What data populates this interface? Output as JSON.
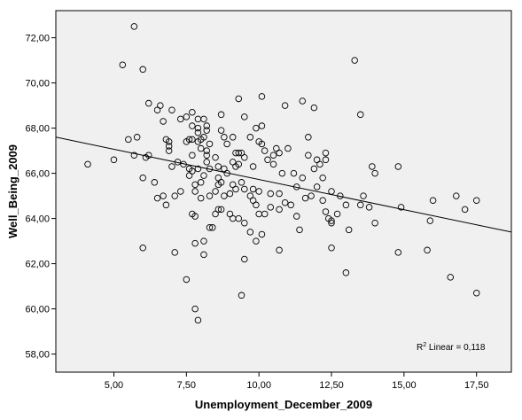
{
  "chart_data": {
    "type": "scatter",
    "xlabel": "Unemployment_December_2009",
    "ylabel": "Well_Being_2009",
    "xlim": [
      3.0,
      18.7
    ],
    "ylim": [
      57.2,
      73.2
    ],
    "x_ticks": [
      5,
      7.5,
      10,
      12.5,
      15,
      17.5
    ],
    "x_tick_labels": [
      "5,00",
      "7,50",
      "10,00",
      "12,50",
      "15,00",
      "17,50"
    ],
    "y_ticks": [
      58,
      60,
      62,
      64,
      66,
      68,
      70,
      72
    ],
    "y_tick_labels": [
      "58,00",
      "60,00",
      "62,00",
      "64,00",
      "66,00",
      "68,00",
      "70,00",
      "72,00"
    ],
    "grid": false,
    "background_color": "#f0f0f0",
    "marker_color": "#000000",
    "fit_line": {
      "x": [
        3.0,
        18.7
      ],
      "y": [
        67.6,
        63.4
      ]
    },
    "annotation": {
      "prefix": "R",
      "sup": "2",
      "text": " Linear = 0,118"
    },
    "points": [
      [
        4.1,
        66.4
      ],
      [
        5.0,
        66.6
      ],
      [
        5.3,
        70.8
      ],
      [
        5.5,
        67.5
      ],
      [
        5.7,
        72.5
      ],
      [
        5.7,
        66.8
      ],
      [
        5.8,
        67.6
      ],
      [
        6.0,
        70.6
      ],
      [
        6.0,
        62.7
      ],
      [
        6.0,
        65.8
      ],
      [
        6.1,
        66.7
      ],
      [
        6.2,
        66.8
      ],
      [
        6.2,
        69.1
      ],
      [
        6.4,
        65.6
      ],
      [
        6.5,
        68.8
      ],
      [
        6.5,
        64.9
      ],
      [
        6.6,
        69.0
      ],
      [
        6.7,
        68.3
      ],
      [
        6.7,
        65.0
      ],
      [
        6.8,
        64.6
      ],
      [
        6.8,
        67.5
      ],
      [
        6.9,
        67.4
      ],
      [
        6.9,
        67.2
      ],
      [
        6.9,
        67.0
      ],
      [
        7.0,
        68.8
      ],
      [
        7.0,
        66.3
      ],
      [
        7.1,
        62.5
      ],
      [
        7.1,
        65.0
      ],
      [
        7.2,
        66.5
      ],
      [
        7.3,
        68.4
      ],
      [
        7.3,
        65.2
      ],
      [
        7.4,
        66.4
      ],
      [
        7.5,
        68.5
      ],
      [
        7.5,
        67.4
      ],
      [
        7.5,
        61.3
      ],
      [
        7.6,
        67.5
      ],
      [
        7.6,
        66.2
      ],
      [
        7.6,
        65.9
      ],
      [
        7.7,
        68.7
      ],
      [
        7.7,
        68.1
      ],
      [
        7.7,
        67.5
      ],
      [
        7.7,
        66.8
      ],
      [
        7.7,
        66.1
      ],
      [
        7.7,
        64.2
      ],
      [
        7.8,
        65.5
      ],
      [
        7.8,
        64.1
      ],
      [
        7.8,
        65.2
      ],
      [
        7.8,
        60.0
      ],
      [
        7.8,
        62.9
      ],
      [
        7.9,
        68.4
      ],
      [
        7.9,
        68.0
      ],
      [
        7.9,
        67.8
      ],
      [
        7.9,
        67.4
      ],
      [
        7.9,
        66.2
      ],
      [
        7.9,
        59.5
      ],
      [
        8.0,
        67.5
      ],
      [
        8.0,
        67.1
      ],
      [
        8.0,
        65.6
      ],
      [
        8.0,
        64.9
      ],
      [
        8.1,
        68.4
      ],
      [
        8.1,
        67.6
      ],
      [
        8.1,
        65.9
      ],
      [
        8.1,
        63.0
      ],
      [
        8.1,
        62.4
      ],
      [
        8.2,
        68.1
      ],
      [
        8.2,
        67.9
      ],
      [
        8.2,
        67.0
      ],
      [
        8.2,
        66.8
      ],
      [
        8.2,
        66.5
      ],
      [
        8.3,
        67.3
      ],
      [
        8.3,
        66.2
      ],
      [
        8.3,
        65.0
      ],
      [
        8.3,
        63.6
      ],
      [
        8.4,
        63.6
      ],
      [
        8.5,
        66.7
      ],
      [
        8.5,
        65.2
      ],
      [
        8.5,
        64.2
      ],
      [
        8.6,
        66.3
      ],
      [
        8.6,
        65.8
      ],
      [
        8.6,
        65.5
      ],
      [
        8.6,
        64.4
      ],
      [
        8.7,
        68.6
      ],
      [
        8.7,
        67.9
      ],
      [
        8.7,
        65.6
      ],
      [
        8.7,
        64.4
      ],
      [
        8.8,
        67.6
      ],
      [
        8.8,
        66.2
      ],
      [
        8.8,
        65.0
      ],
      [
        8.9,
        67.3
      ],
      [
        8.9,
        66.0
      ],
      [
        9.0,
        64.2
      ],
      [
        9.0,
        65.1
      ],
      [
        9.1,
        67.6
      ],
      [
        9.1,
        66.5
      ],
      [
        9.1,
        65.5
      ],
      [
        9.1,
        64.0
      ],
      [
        9.2,
        66.9
      ],
      [
        9.2,
        66.3
      ],
      [
        9.2,
        65.3
      ],
      [
        9.3,
        69.3
      ],
      [
        9.3,
        66.9
      ],
      [
        9.3,
        66.4
      ],
      [
        9.3,
        64.0
      ],
      [
        9.4,
        66.9
      ],
      [
        9.4,
        65.6
      ],
      [
        9.4,
        60.6
      ],
      [
        9.5,
        68.5
      ],
      [
        9.5,
        66.7
      ],
      [
        9.5,
        65.3
      ],
      [
        9.5,
        62.2
      ],
      [
        9.5,
        63.8
      ],
      [
        9.7,
        67.6
      ],
      [
        9.7,
        65.0
      ],
      [
        9.7,
        63.4
      ],
      [
        9.8,
        66.3
      ],
      [
        9.8,
        65.3
      ],
      [
        9.8,
        64.8
      ],
      [
        9.9,
        68.0
      ],
      [
        9.9,
        64.6
      ],
      [
        9.9,
        63.0
      ],
      [
        10.0,
        67.4
      ],
      [
        10.0,
        65.2
      ],
      [
        10.0,
        64.2
      ],
      [
        10.1,
        69.4
      ],
      [
        10.1,
        68.1
      ],
      [
        10.1,
        67.3
      ],
      [
        10.1,
        63.3
      ],
      [
        10.2,
        67.0
      ],
      [
        10.2,
        64.2
      ],
      [
        10.3,
        66.6
      ],
      [
        10.4,
        64.5
      ],
      [
        10.4,
        65.1
      ],
      [
        10.5,
        66.4
      ],
      [
        10.5,
        66.8
      ],
      [
        10.6,
        67.1
      ],
      [
        10.7,
        66.9
      ],
      [
        10.7,
        65.1
      ],
      [
        10.7,
        64.4
      ],
      [
        10.7,
        62.6
      ],
      [
        10.8,
        66.0
      ],
      [
        10.9,
        69.0
      ],
      [
        10.9,
        64.7
      ],
      [
        11.0,
        67.1
      ],
      [
        11.1,
        64.6
      ],
      [
        11.2,
        66.0
      ],
      [
        11.3,
        65.4
      ],
      [
        11.3,
        64.1
      ],
      [
        11.4,
        63.5
      ],
      [
        11.5,
        69.2
      ],
      [
        11.5,
        65.8
      ],
      [
        11.6,
        64.9
      ],
      [
        11.7,
        67.6
      ],
      [
        11.7,
        66.8
      ],
      [
        11.8,
        65.0
      ],
      [
        11.9,
        68.9
      ],
      [
        11.9,
        66.2
      ],
      [
        12.0,
        66.6
      ],
      [
        12.0,
        65.4
      ],
      [
        12.1,
        66.4
      ],
      [
        12.2,
        65.8
      ],
      [
        12.2,
        64.8
      ],
      [
        12.3,
        66.9
      ],
      [
        12.3,
        66.6
      ],
      [
        12.3,
        64.3
      ],
      [
        12.4,
        64.0
      ],
      [
        12.5,
        65.2
      ],
      [
        12.5,
        63.9
      ],
      [
        12.5,
        63.8
      ],
      [
        12.5,
        62.7
      ],
      [
        12.7,
        64.2
      ],
      [
        12.8,
        65.0
      ],
      [
        13.0,
        61.6
      ],
      [
        13.0,
        64.6
      ],
      [
        13.1,
        63.5
      ],
      [
        13.3,
        71.0
      ],
      [
        13.5,
        68.6
      ],
      [
        13.5,
        64.6
      ],
      [
        13.6,
        65.0
      ],
      [
        13.8,
        64.5
      ],
      [
        13.9,
        66.3
      ],
      [
        14.0,
        66.0
      ],
      [
        14.0,
        63.8
      ],
      [
        14.8,
        66.3
      ],
      [
        14.8,
        62.5
      ],
      [
        14.9,
        64.5
      ],
      [
        15.8,
        62.6
      ],
      [
        15.9,
        63.9
      ],
      [
        16.0,
        64.8
      ],
      [
        16.6,
        61.4
      ],
      [
        16.8,
        65.0
      ],
      [
        17.1,
        64.4
      ],
      [
        17.5,
        64.8
      ],
      [
        17.5,
        60.7
      ]
    ]
  }
}
